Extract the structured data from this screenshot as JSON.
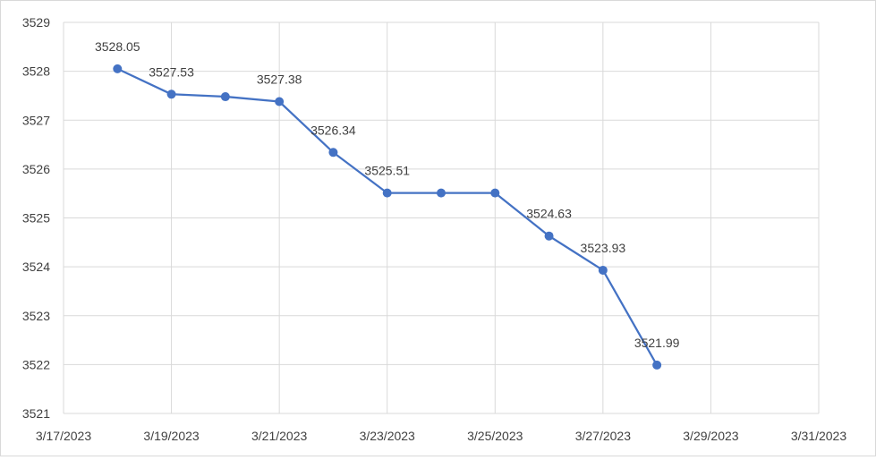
{
  "chart_data": {
    "type": "line",
    "title": "",
    "xlabel": "",
    "ylabel": "",
    "x_ticks": [
      "3/17/2023",
      "3/19/2023",
      "3/21/2023",
      "3/23/2023",
      "3/25/2023",
      "3/27/2023",
      "3/29/2023",
      "3/31/2023"
    ],
    "y_ticks": [
      3521,
      3522,
      3523,
      3524,
      3525,
      3526,
      3527,
      3528,
      3529
    ],
    "xlim": [
      "2023-03-17",
      "2023-03-31"
    ],
    "ylim": [
      3521,
      3529
    ],
    "grid": true,
    "series": [
      {
        "color": "#4472c4",
        "points": [
          {
            "x": "2023-03-18",
            "y": 3528.05,
            "label": "3528.05"
          },
          {
            "x": "2023-03-19",
            "y": 3527.53,
            "label": "3527.53"
          },
          {
            "x": "2023-03-20",
            "y": 3527.48,
            "label": ""
          },
          {
            "x": "2023-03-21",
            "y": 3527.38,
            "label": "3527.38"
          },
          {
            "x": "2023-03-22",
            "y": 3526.34,
            "label": "3526.34"
          },
          {
            "x": "2023-03-23",
            "y": 3525.51,
            "label": "3525.51"
          },
          {
            "x": "2023-03-24",
            "y": 3525.51,
            "label": ""
          },
          {
            "x": "2023-03-25",
            "y": 3525.51,
            "label": ""
          },
          {
            "x": "2023-03-26",
            "y": 3524.63,
            "label": "3524.63"
          },
          {
            "x": "2023-03-27",
            "y": 3523.93,
            "label": "3523.93"
          },
          {
            "x": "2023-03-28",
            "y": 3521.99,
            "label": "3521.99"
          }
        ]
      }
    ]
  }
}
